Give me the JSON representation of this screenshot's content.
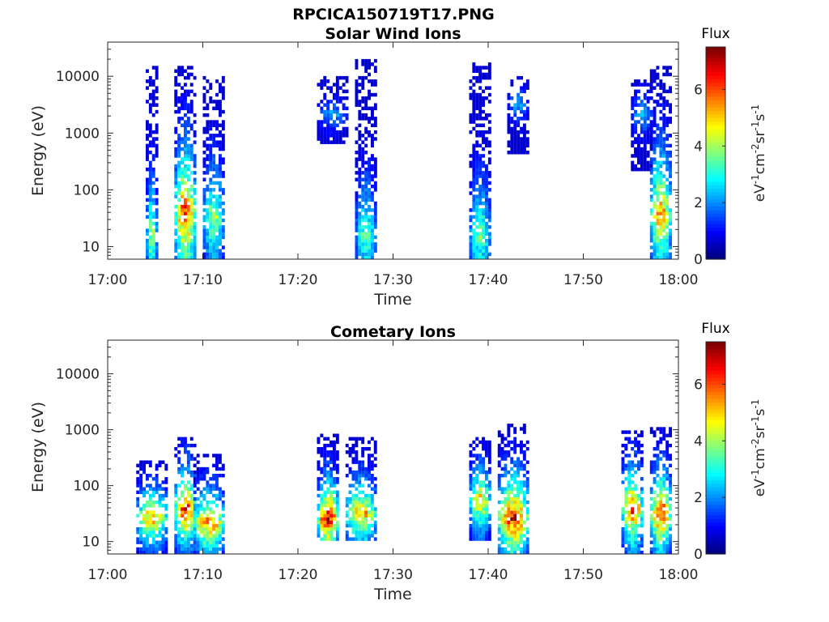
{
  "figure": {
    "title": "RPCICA150719T17.PNG"
  },
  "colors": {
    "colormap": [
      "#00007f",
      "#0000ff",
      "#007fff",
      "#00ffff",
      "#7fff7f",
      "#ffff00",
      "#ff7f00",
      "#ff0000",
      "#7f0000"
    ]
  },
  "chart_data": [
    {
      "type": "heatmap",
      "title": "Solar Wind Ions",
      "xlabel": "Time",
      "ylabel": "Energy (eV)",
      "xlim": [
        "17:00",
        "18:00"
      ],
      "xticks": [
        "17:00",
        "17:10",
        "17:20",
        "17:30",
        "17:40",
        "17:50",
        "18:00"
      ],
      "yscale": "log",
      "ylim": [
        6,
        40000
      ],
      "yticks": [
        10,
        100,
        1000,
        10000
      ],
      "colorbar": {
        "title": "Flux",
        "label": "eV-1cm-2sr-1s-1",
        "ticks": [
          0,
          2,
          4,
          6
        ],
        "range": [
          0,
          7.5
        ]
      },
      "bursts": [
        {
          "t_start": "17:04",
          "t_end": "17:05",
          "e_min": 6,
          "e_max": 14000,
          "peak_energy": 15,
          "peak_flux": 4.5
        },
        {
          "t_start": "17:07",
          "t_end": "17:09",
          "e_min": 6,
          "e_max": 15000,
          "peak_energy": 35,
          "peak_flux": 7.0
        },
        {
          "t_start": "17:10",
          "t_end": "17:12",
          "e_min": 6,
          "e_max": 9000,
          "peak_energy": 30,
          "peak_flux": 4.5
        },
        {
          "t_start": "17:22",
          "t_end": "17:25",
          "e_min": 600,
          "e_max": 9000,
          "peak_energy": 2000,
          "peak_flux": 2.4
        },
        {
          "t_start": "17:26",
          "t_end": "17:28",
          "e_min": 6,
          "e_max": 20000,
          "peak_energy": 15,
          "peak_flux": 3.8
        },
        {
          "t_start": "17:38",
          "t_end": "17:40",
          "e_min": 6,
          "e_max": 17000,
          "peak_energy": 15,
          "peak_flux": 4.0
        },
        {
          "t_start": "17:42",
          "t_end": "17:44",
          "e_min": 400,
          "e_max": 9000,
          "peak_energy": 3000,
          "peak_flux": 2.4
        },
        {
          "t_start": "17:55",
          "t_end": "17:57",
          "e_min": 200,
          "e_max": 8000,
          "peak_energy": 2000,
          "peak_flux": 2.6
        },
        {
          "t_start": "17:57",
          "t_end": "17:59",
          "e_min": 6,
          "e_max": 15000,
          "peak_energy": 35,
          "peak_flux": 6.2
        }
      ]
    },
    {
      "type": "heatmap",
      "title": "Cometary Ions",
      "xlabel": "Time",
      "ylabel": "Energy (eV)",
      "xlim": [
        "17:00",
        "18:00"
      ],
      "xticks": [
        "17:00",
        "17:10",
        "17:20",
        "17:30",
        "17:40",
        "17:50",
        "18:00"
      ],
      "yscale": "log",
      "ylim": [
        6,
        40000
      ],
      "yticks": [
        10,
        100,
        1000,
        10000
      ],
      "colorbar": {
        "title": "Flux",
        "label": "eV-1cm-2sr-1s-1",
        "ticks": [
          0,
          2,
          4,
          6
        ],
        "range": [
          0,
          7.5
        ]
      },
      "bursts": [
        {
          "t_start": "17:03",
          "t_end": "17:06",
          "e_min": 6,
          "e_max": 250,
          "peak_energy": 25,
          "peak_flux": 6.0
        },
        {
          "t_start": "17:07",
          "t_end": "17:09",
          "e_min": 6,
          "e_max": 700,
          "peak_energy": 35,
          "peak_flux": 7.2
        },
        {
          "t_start": "17:09",
          "t_end": "17:12",
          "e_min": 6,
          "e_max": 350,
          "peak_energy": 20,
          "peak_flux": 6.5
        },
        {
          "t_start": "17:22",
          "t_end": "17:24",
          "e_min": 10,
          "e_max": 800,
          "peak_energy": 25,
          "peak_flux": 7.5
        },
        {
          "t_start": "17:25",
          "t_end": "17:28",
          "e_min": 10,
          "e_max": 700,
          "peak_energy": 30,
          "peak_flux": 6.0
        },
        {
          "t_start": "17:38",
          "t_end": "17:40",
          "e_min": 10,
          "e_max": 700,
          "peak_energy": 50,
          "peak_flux": 5.8
        },
        {
          "t_start": "17:41",
          "t_end": "17:44",
          "e_min": 6,
          "e_max": 1200,
          "peak_energy": 25,
          "peak_flux": 7.2
        },
        {
          "t_start": "17:54",
          "t_end": "17:56",
          "e_min": 6,
          "e_max": 900,
          "peak_energy": 35,
          "peak_flux": 6.8
        },
        {
          "t_start": "17:57",
          "t_end": "17:59",
          "e_min": 6,
          "e_max": 1000,
          "peak_energy": 30,
          "peak_flux": 7.2
        }
      ]
    }
  ]
}
